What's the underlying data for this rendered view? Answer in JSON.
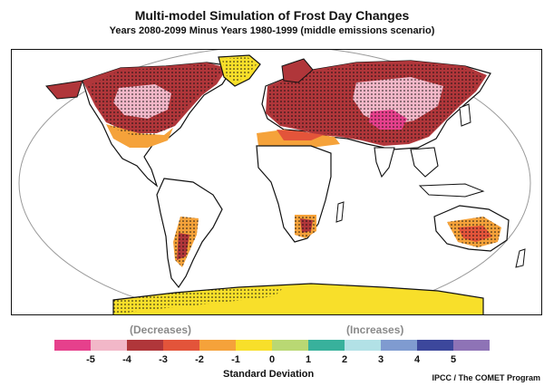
{
  "title": "Multi-model Simulation of Frost Day Changes",
  "subtitle": "Years 2080-2099 Minus Years 1980-1999 (middle emissions scenario)",
  "legend": {
    "decreases_label": "(Decreases)",
    "increases_label": "(Increases)",
    "axis_title": "Standard Deviation",
    "tick_labels": [
      "-5",
      "-4",
      "-3",
      "-2",
      "-1",
      "0",
      "1",
      "2",
      "3",
      "4",
      "5"
    ],
    "colors": [
      "#e6408c",
      "#f2b7c8",
      "#b0363a",
      "#e3543a",
      "#f5a23a",
      "#f8df2a",
      "#b9d873",
      "#38b19c",
      "#b2e1e6",
      "#7f9bd0",
      "#3c479c",
      "#8e73b6"
    ]
  },
  "credit": "IPCC / The COMET Program",
  "map_colors": {
    "land_outline": "#111111",
    "projection_outline": "#9a9a9a",
    "ocean": "#ffffff"
  }
}
